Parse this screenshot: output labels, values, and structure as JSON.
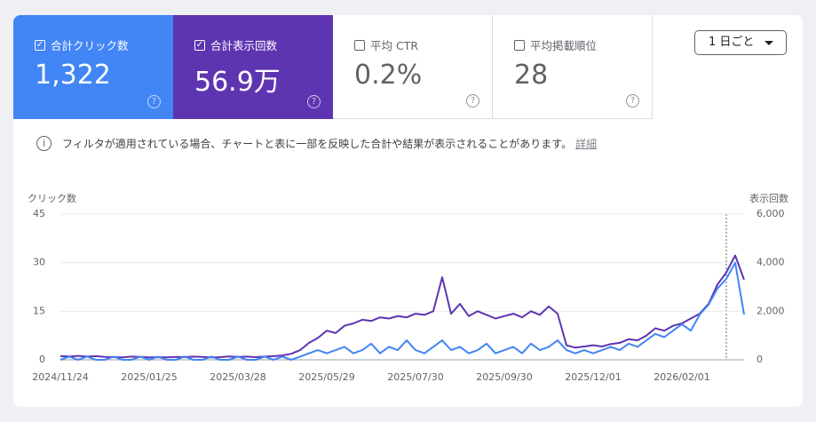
{
  "cards": [
    {
      "label": "合計クリック数",
      "value": "1,322",
      "checked": true,
      "color": "#4285f4"
    },
    {
      "label": "合計表示回数",
      "value": "56.9万",
      "checked": true,
      "color": "#5e35b1"
    },
    {
      "label": "平均 CTR",
      "value": "0.2%",
      "checked": false
    },
    {
      "label": "平均掲載順位",
      "value": "28",
      "checked": false
    }
  ],
  "dropdown": "1 日ごと",
  "notice": {
    "text": "フィルタが適用されている場合、チャートと表に一部を反映した合計や結果が表示されることがあります。",
    "link": "詳細"
  },
  "chart_data": {
    "type": "line",
    "y_label": "クリック数",
    "y2_label": "表示回数",
    "categories": [
      "2024/11/24",
      null,
      null,
      null,
      null,
      null,
      null,
      null,
      null,
      null,
      "2025/01/25",
      null,
      null,
      null,
      null,
      null,
      null,
      null,
      null,
      null,
      "2025/03/28",
      null,
      null,
      null,
      null,
      null,
      null,
      null,
      null,
      null,
      "2025/05/29",
      null,
      null,
      null,
      null,
      null,
      null,
      null,
      null,
      null,
      "2025/07/30",
      null,
      null,
      null,
      null,
      null,
      null,
      null,
      null,
      null,
      "2025/09/30",
      null,
      null,
      null,
      null,
      null,
      null,
      null,
      null,
      null,
      "2025/12/01",
      null,
      null,
      null,
      null,
      null,
      null,
      null,
      null,
      null,
      "2026/02/01",
      null,
      null,
      null,
      null,
      null,
      null,
      null
    ],
    "ylim": [
      0,
      45
    ],
    "yticks": [
      0,
      15,
      30,
      45
    ],
    "y2lim": [
      0,
      6000
    ],
    "y2ticks": [
      0,
      {
        "value": 2000,
        "label": "2,000"
      },
      {
        "value": 4000,
        "label": "4,000"
      },
      {
        "value": 6000,
        "label": "6,000"
      }
    ],
    "grid": true,
    "series": [
      {
        "color": "#5e35b1",
        "axis": "y2",
        "values": [
          150,
          140,
          160,
          130,
          150,
          120,
          110,
          100,
          130,
          120,
          100,
          110,
          100,
          120,
          110,
          130,
          120,
          100,
          110,
          140,
          120,
          130,
          110,
          130,
          150,
          180,
          250,
          400,
          700,
          900,
          1200,
          1100,
          1400,
          1500,
          1650,
          1600,
          1750,
          1700,
          1800,
          1750,
          1900,
          1850,
          2000,
          3400,
          1900,
          2300,
          1800,
          2000,
          1850,
          1700,
          1800,
          1900,
          1750,
          2000,
          1850,
          2200,
          1900,
          600,
          500,
          550,
          600,
          550,
          650,
          700,
          850,
          800,
          1000,
          1300,
          1200,
          1400,
          1500,
          1700,
          1900,
          2300,
          3100,
          3600,
          4300,
          3300
        ]
      },
      {
        "color": "#4285f4",
        "values": [
          0,
          1,
          0,
          1,
          0,
          0,
          1,
          0,
          0,
          1,
          0,
          1,
          0,
          0,
          1,
          0,
          0,
          1,
          0,
          0,
          1,
          0,
          0,
          1,
          0,
          1,
          0,
          1,
          2,
          3,
          2,
          3,
          4,
          2,
          3,
          5,
          2,
          4,
          3,
          6,
          3,
          2,
          4,
          6,
          3,
          4,
          2,
          3,
          5,
          2,
          3,
          4,
          2,
          5,
          3,
          4,
          6,
          3,
          2,
          3,
          2,
          3,
          4,
          3,
          5,
          4,
          6,
          8,
          7,
          9,
          11,
          9,
          14,
          17,
          22,
          25,
          30,
          14
        ]
      }
    ]
  }
}
